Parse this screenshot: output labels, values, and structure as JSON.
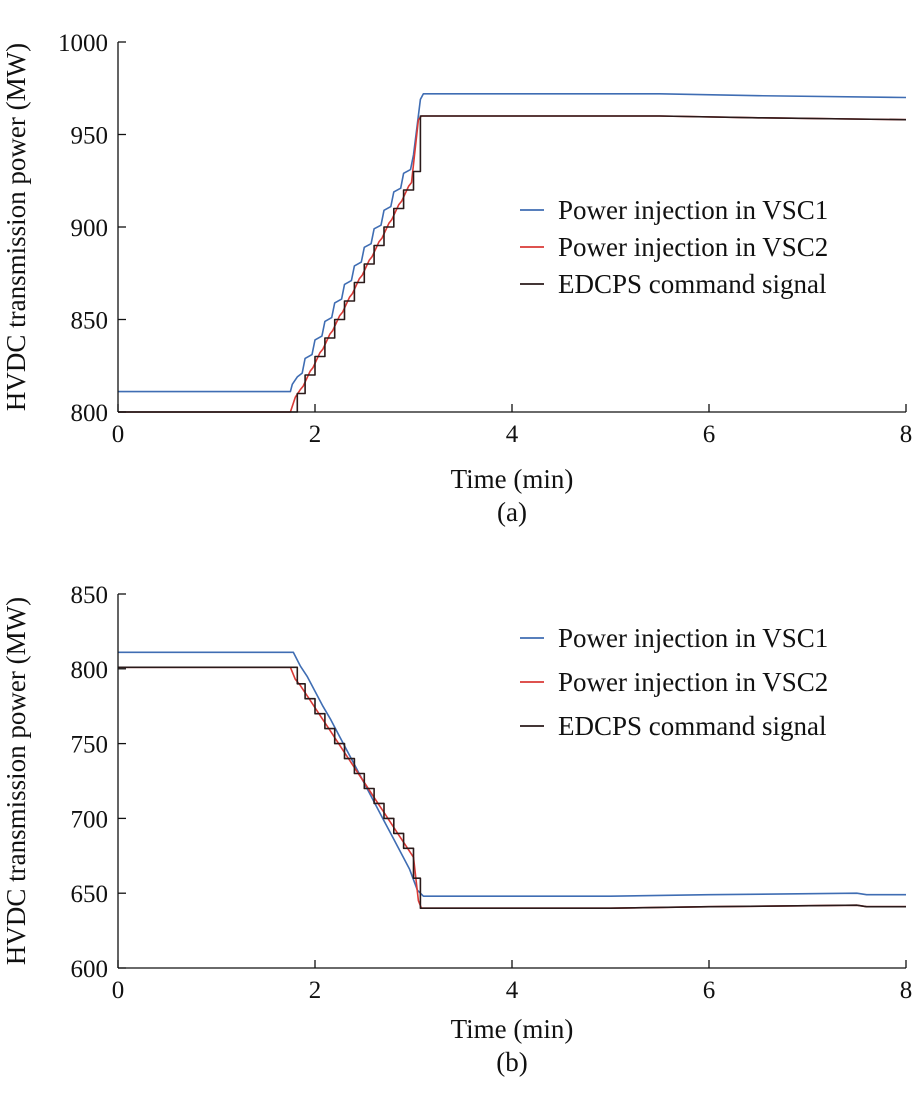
{
  "chart_data": [
    {
      "type": "line",
      "panel_label": "(a)",
      "xlabel": "Time (min)",
      "ylabel": "HVDC transmission power (MW)",
      "xlim": [
        0,
        8
      ],
      "ylim": [
        800,
        1000
      ],
      "xticks": [
        0,
        2,
        4,
        6,
        8
      ],
      "yticks": [
        800,
        850,
        900,
        950,
        1000
      ],
      "legend_position": "center-right",
      "series": [
        {
          "name": "Power injection in VSC1",
          "color": "#3f6db3",
          "x": [
            0,
            1.75,
            1.77,
            1.82,
            1.87,
            1.9,
            1.97,
            2.0,
            2.07,
            2.1,
            2.17,
            2.2,
            2.27,
            2.3,
            2.37,
            2.4,
            2.47,
            2.5,
            2.57,
            2.6,
            2.67,
            2.7,
            2.77,
            2.8,
            2.87,
            2.9,
            2.97,
            3.0,
            3.07,
            3.1,
            5.5,
            6.5,
            8.0
          ],
          "y": [
            811,
            811,
            815,
            819,
            821,
            829,
            831,
            839,
            841,
            849,
            851,
            859,
            861,
            869,
            871,
            879,
            881,
            889,
            891,
            899,
            901,
            909,
            911,
            919,
            921,
            929,
            931,
            939,
            969,
            972,
            972,
            971,
            970
          ]
        },
        {
          "name": "Power injection in VSC2",
          "color": "#d93a36",
          "x": [
            0,
            1.75,
            1.8,
            1.85,
            1.88,
            1.95,
            1.98,
            2.05,
            2.08,
            2.15,
            2.18,
            2.25,
            2.28,
            2.35,
            2.38,
            2.45,
            2.48,
            2.55,
            2.58,
            2.65,
            2.68,
            2.75,
            2.78,
            2.85,
            2.88,
            2.95,
            2.98,
            3.05,
            3.08,
            5.5,
            6.5,
            8.0
          ],
          "y": [
            800,
            800,
            808,
            812,
            814,
            822,
            824,
            832,
            834,
            842,
            844,
            852,
            854,
            862,
            864,
            872,
            874,
            882,
            884,
            892,
            894,
            902,
            904,
            912,
            914,
            922,
            924,
            958,
            960,
            960,
            959,
            958
          ]
        },
        {
          "name": "EDCPS command signal",
          "color": "#2a1a1a",
          "x": [
            0,
            1.82,
            1.82,
            1.9,
            1.9,
            2.0,
            2.0,
            2.1,
            2.1,
            2.2,
            2.2,
            2.3,
            2.3,
            2.4,
            2.4,
            2.5,
            2.5,
            2.6,
            2.6,
            2.7,
            2.7,
            2.8,
            2.8,
            2.9,
            2.9,
            3.0,
            3.0,
            3.07,
            3.07,
            5.5,
            6.5,
            8.0
          ],
          "y": [
            800,
            800,
            810,
            810,
            820,
            820,
            830,
            830,
            840,
            840,
            850,
            850,
            860,
            860,
            870,
            870,
            880,
            880,
            890,
            890,
            900,
            900,
            910,
            910,
            920,
            920,
            930,
            930,
            960,
            960,
            959,
            958
          ]
        }
      ]
    },
    {
      "type": "line",
      "panel_label": "(b)",
      "xlabel": "Time (min)",
      "ylabel": "HVDC transmission power (MW)",
      "xlim": [
        0,
        8
      ],
      "ylim": [
        600,
        850
      ],
      "xticks": [
        0,
        2,
        4,
        6,
        8
      ],
      "yticks": [
        600,
        650,
        700,
        750,
        800,
        850
      ],
      "legend_position": "top-right",
      "series": [
        {
          "name": "Power injection in VSC1",
          "color": "#3f6db3",
          "x": [
            0,
            1.78,
            1.85,
            1.92,
            2.0,
            2.08,
            2.16,
            2.24,
            2.32,
            2.4,
            2.48,
            2.56,
            2.64,
            2.72,
            2.8,
            2.88,
            2.96,
            3.04,
            3.1,
            5.0,
            6.0,
            7.5,
            7.6,
            8.0
          ],
          "y": [
            811,
            811,
            802,
            795,
            785,
            775,
            766,
            756,
            746,
            736,
            726,
            716,
            706,
            696,
            686,
            676,
            666,
            652,
            648,
            648,
            649,
            650,
            649,
            649
          ]
        },
        {
          "name": "Power injection in VSC2",
          "color": "#d93a36",
          "x": [
            0,
            1.75,
            1.8,
            1.85,
            1.9,
            1.95,
            2.0,
            2.05,
            2.1,
            2.15,
            2.2,
            2.25,
            2.3,
            2.35,
            2.4,
            2.45,
            2.5,
            2.55,
            2.6,
            2.65,
            2.7,
            2.75,
            2.8,
            2.85,
            2.9,
            2.95,
            3.0,
            3.05,
            3.08,
            5.0,
            6.0,
            7.5,
            7.6,
            8.0
          ],
          "y": [
            801,
            801,
            793,
            789,
            784,
            779,
            774,
            769,
            764,
            759,
            754,
            749,
            744,
            739,
            734,
            729,
            724,
            719,
            714,
            709,
            704,
            699,
            694,
            689,
            684,
            679,
            674,
            645,
            640,
            640,
            641,
            642,
            641,
            641
          ]
        },
        {
          "name": "EDCPS command signal",
          "color": "#2a1a1a",
          "x": [
            0,
            1.82,
            1.82,
            1.9,
            1.9,
            2.0,
            2.0,
            2.1,
            2.1,
            2.2,
            2.2,
            2.3,
            2.3,
            2.4,
            2.4,
            2.5,
            2.5,
            2.6,
            2.6,
            2.7,
            2.7,
            2.8,
            2.8,
            2.9,
            2.9,
            3.0,
            3.0,
            3.07,
            3.07,
            5.0,
            6.0,
            7.5,
            7.6,
            8.0
          ],
          "y": [
            801,
            801,
            790,
            790,
            780,
            780,
            770,
            770,
            760,
            760,
            750,
            750,
            740,
            740,
            730,
            730,
            720,
            720,
            710,
            710,
            700,
            700,
            690,
            690,
            680,
            680,
            660,
            660,
            640,
            640,
            641,
            642,
            641,
            641
          ]
        }
      ]
    }
  ]
}
